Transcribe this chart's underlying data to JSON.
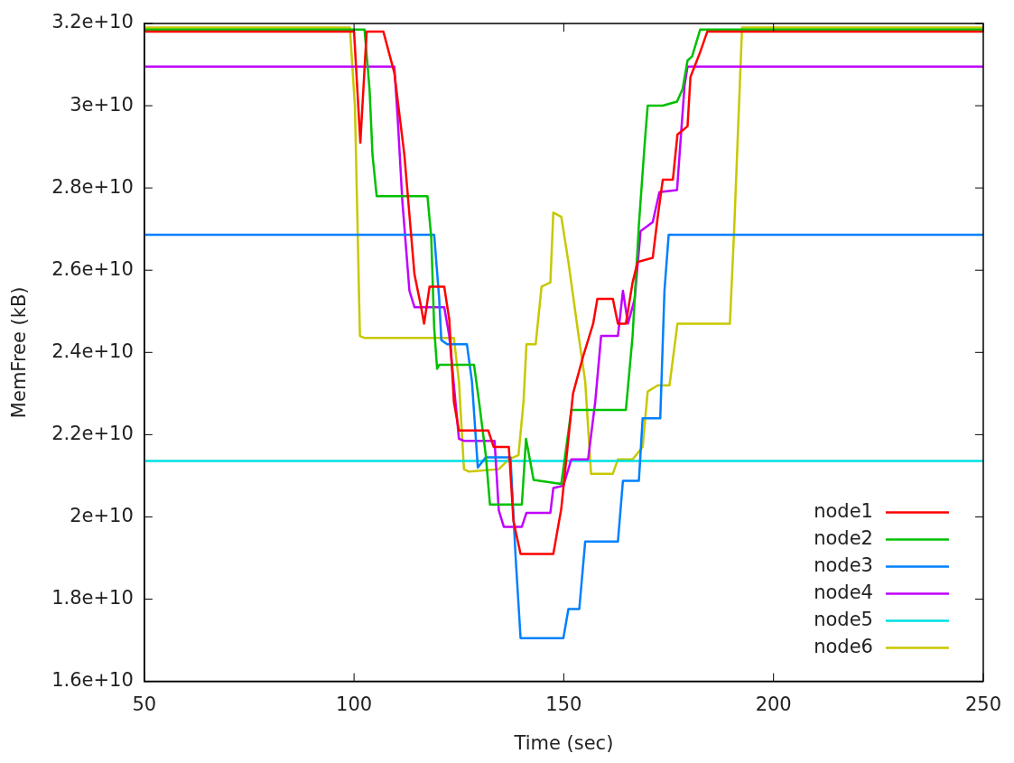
{
  "chart_data": {
    "type": "line",
    "xlabel": "Time (sec)",
    "ylabel": "MemFree (kB)",
    "xlim": [
      50,
      250
    ],
    "xticks": [
      50,
      100,
      150,
      200,
      250
    ],
    "ylim": [
      16000000000.0,
      32000000000.0
    ],
    "yticks": [
      {
        "value": 16000000000.0,
        "label": "1.6e+10"
      },
      {
        "value": 18000000000.0,
        "label": "1.8e+10"
      },
      {
        "value": 20000000000.0,
        "label": "2e+10"
      },
      {
        "value": 22000000000.0,
        "label": "2.2e+10"
      },
      {
        "value": 24000000000.0,
        "label": "2.4e+10"
      },
      {
        "value": 26000000000.0,
        "label": "2.6e+10"
      },
      {
        "value": 28000000000.0,
        "label": "2.8e+10"
      },
      {
        "value": 30000000000.0,
        "label": "3e+10"
      },
      {
        "value": 32000000000.0,
        "label": "3.2e+10"
      }
    ],
    "grid": false,
    "legend": "bottom right",
    "marker": "none",
    "line_style": "solid",
    "series": [
      {
        "name": "node1",
        "color": "#ff0000",
        "x": [
          50,
          100,
          101.5,
          103,
          107,
          109.6,
          112,
          114.4,
          116,
          116.7,
          118,
          121.5,
          122.7,
          123.8,
          125,
          132,
          133.3,
          136.9,
          138,
          139.7,
          147.5,
          149.4,
          152.2,
          154.6,
          157,
          158,
          161.7,
          162.9,
          164.8,
          166.4,
          167.6,
          171.2,
          172.4,
          173.6,
          176,
          177.1,
          179.5,
          180.2,
          182.5,
          184.2,
          250
        ],
        "values": [
          31800000000.0,
          31800000000.0,
          29100000000.0,
          31800000000.0,
          31800000000.0,
          30800000000.0,
          28800000000.0,
          25900000000.0,
          25100000000.0,
          24700000000.0,
          25600000000.0,
          25600000000.0,
          24800000000.0,
          22800000000.0,
          22100000000.0,
          22100000000.0,
          21700000000.0,
          21700000000.0,
          19900000000.0,
          19100000000.0,
          19100000000.0,
          20200000000.0,
          23000000000.0,
          23900000000.0,
          24700000000.0,
          25300000000.0,
          25300000000.0,
          24700000000.0,
          24700000000.0,
          25700000000.0,
          26200000000.0,
          26300000000.0,
          27300000000.0,
          28200000000.0,
          28200000000.0,
          29300000000.0,
          29500000000.0,
          30700000000.0,
          31300000000.0,
          31800000000.0,
          31800000000.0
        ]
      },
      {
        "name": "node2",
        "color": "#00c000",
        "x": [
          50,
          102.5,
          103.7,
          104.4,
          105.4,
          117.5,
          118.4,
          119.1,
          119.8,
          120.3,
          128.6,
          129.8,
          131.4,
          132.4,
          140,
          141,
          142.8,
          149.4,
          151.8,
          164.8,
          166.4,
          167.9,
          169.3,
          170,
          173.6,
          177,
          178.3,
          179.5,
          180.6,
          182.5,
          250
        ],
        "values": [
          31850000000.0,
          31850000000.0,
          30400000000.0,
          28800000000.0,
          27800000000.0,
          27800000000.0,
          26800000000.0,
          24600000000.0,
          23600000000.0,
          23700000000.0,
          23700000000.0,
          22800000000.0,
          21500000000.0,
          20300000000.0,
          20300000000.0,
          21900000000.0,
          20900000000.0,
          20800000000.0,
          22600000000.0,
          22600000000.0,
          24400000000.0,
          27100000000.0,
          29100000000.0,
          30000000000.0,
          30000000000.0,
          30100000000.0,
          30400000000.0,
          31100000000.0,
          31200000000.0,
          31850000000.0,
          31850000000.0
        ]
      },
      {
        "name": "node3",
        "color": "#0080ff",
        "x": [
          50,
          119.1,
          120.3,
          120.8,
          122.2,
          126.9,
          128.1,
          129.5,
          131.4,
          137.3,
          138.5,
          139.7,
          149.9,
          151.1,
          153.7,
          155.1,
          162.9,
          164.1,
          167.9,
          168.8,
          173,
          174,
          175,
          250
        ],
        "values": [
          26860000000.0,
          26860000000.0,
          25300000000.0,
          24300000000.0,
          24200000000.0,
          24200000000.0,
          23300000000.0,
          21200000000.0,
          21450000000.0,
          21450000000.0,
          19050000000.0,
          17050000000.0,
          17050000000.0,
          17760000000.0,
          17760000000.0,
          19400000000.0,
          19400000000.0,
          20880000000.0,
          20880000000.0,
          22400000000.0,
          22400000000.0,
          25500000000.0,
          26860000000.0,
          26860000000.0
        ]
      },
      {
        "name": "node4",
        "color": "#c000ff",
        "x": [
          50,
          109.6,
          110.4,
          111.5,
          113.2,
          114.4,
          121.5,
          122.7,
          125,
          126.2,
          133.5,
          134.5,
          135.7,
          140,
          141.1,
          146.8,
          147.5,
          149.9,
          151.8,
          155.8,
          157.5,
          158.9,
          162.9,
          164.1,
          165.3,
          166.9,
          168.3,
          171.2,
          172.8,
          177,
          177.8,
          178.8,
          179.5,
          250
        ],
        "values": [
          30950000000.0,
          30950000000.0,
          29700000000.0,
          27700000000.0,
          25500000000.0,
          25100000000.0,
          25100000000.0,
          24400000000.0,
          21900000000.0,
          21850000000.0,
          21850000000.0,
          20160000000.0,
          19760000000.0,
          19760000000.0,
          20100000000.0,
          20100000000.0,
          20700000000.0,
          20760000000.0,
          21400000000.0,
          21400000000.0,
          22800000000.0,
          24400000000.0,
          24400000000.0,
          25500000000.0,
          24700000000.0,
          25300000000.0,
          26950000000.0,
          27170000000.0,
          27900000000.0,
          27950000000.0,
          29100000000.0,
          30500000000.0,
          30950000000.0,
          30950000000.0
        ]
      },
      {
        "name": "node5",
        "color": "#00e0e0",
        "x": [
          50,
          250
        ],
        "values": [
          21360000000.0,
          21360000000.0
        ]
      },
      {
        "name": "node6",
        "color": "#c8c800",
        "x": [
          50,
          99,
          100.2,
          100.7,
          101.4,
          102.5,
          123.8,
          125,
          126.2,
          127.4,
          134.5,
          136.9,
          139.2,
          140.4,
          141.1,
          143.3,
          144.7,
          146.8,
          147.5,
          149.4,
          151.1,
          153.4,
          155.1,
          156.5,
          161.7,
          162.9,
          166.4,
          168.8,
          170,
          172.4,
          175.2,
          177.1,
          189.6,
          190.6,
          191.5,
          192.5,
          250
        ],
        "values": [
          31900000000.0,
          31900000000.0,
          30000000000.0,
          27700000000.0,
          24400000000.0,
          24350000000.0,
          24350000000.0,
          23300000000.0,
          21160000000.0,
          21100000000.0,
          21160000000.0,
          21400000000.0,
          21500000000.0,
          22800000000.0,
          24200000000.0,
          24200000000.0,
          25600000000.0,
          25700000000.0,
          27400000000.0,
          27300000000.0,
          26200000000.0,
          24500000000.0,
          23300000000.0,
          21050000000.0,
          21050000000.0,
          21400000000.0,
          21400000000.0,
          21700000000.0,
          23050000000.0,
          23200000000.0,
          23200000000.0,
          24700000000.0,
          24700000000.0,
          26950000000.0,
          29300000000.0,
          31900000000.0,
          31900000000.0
        ]
      }
    ]
  }
}
